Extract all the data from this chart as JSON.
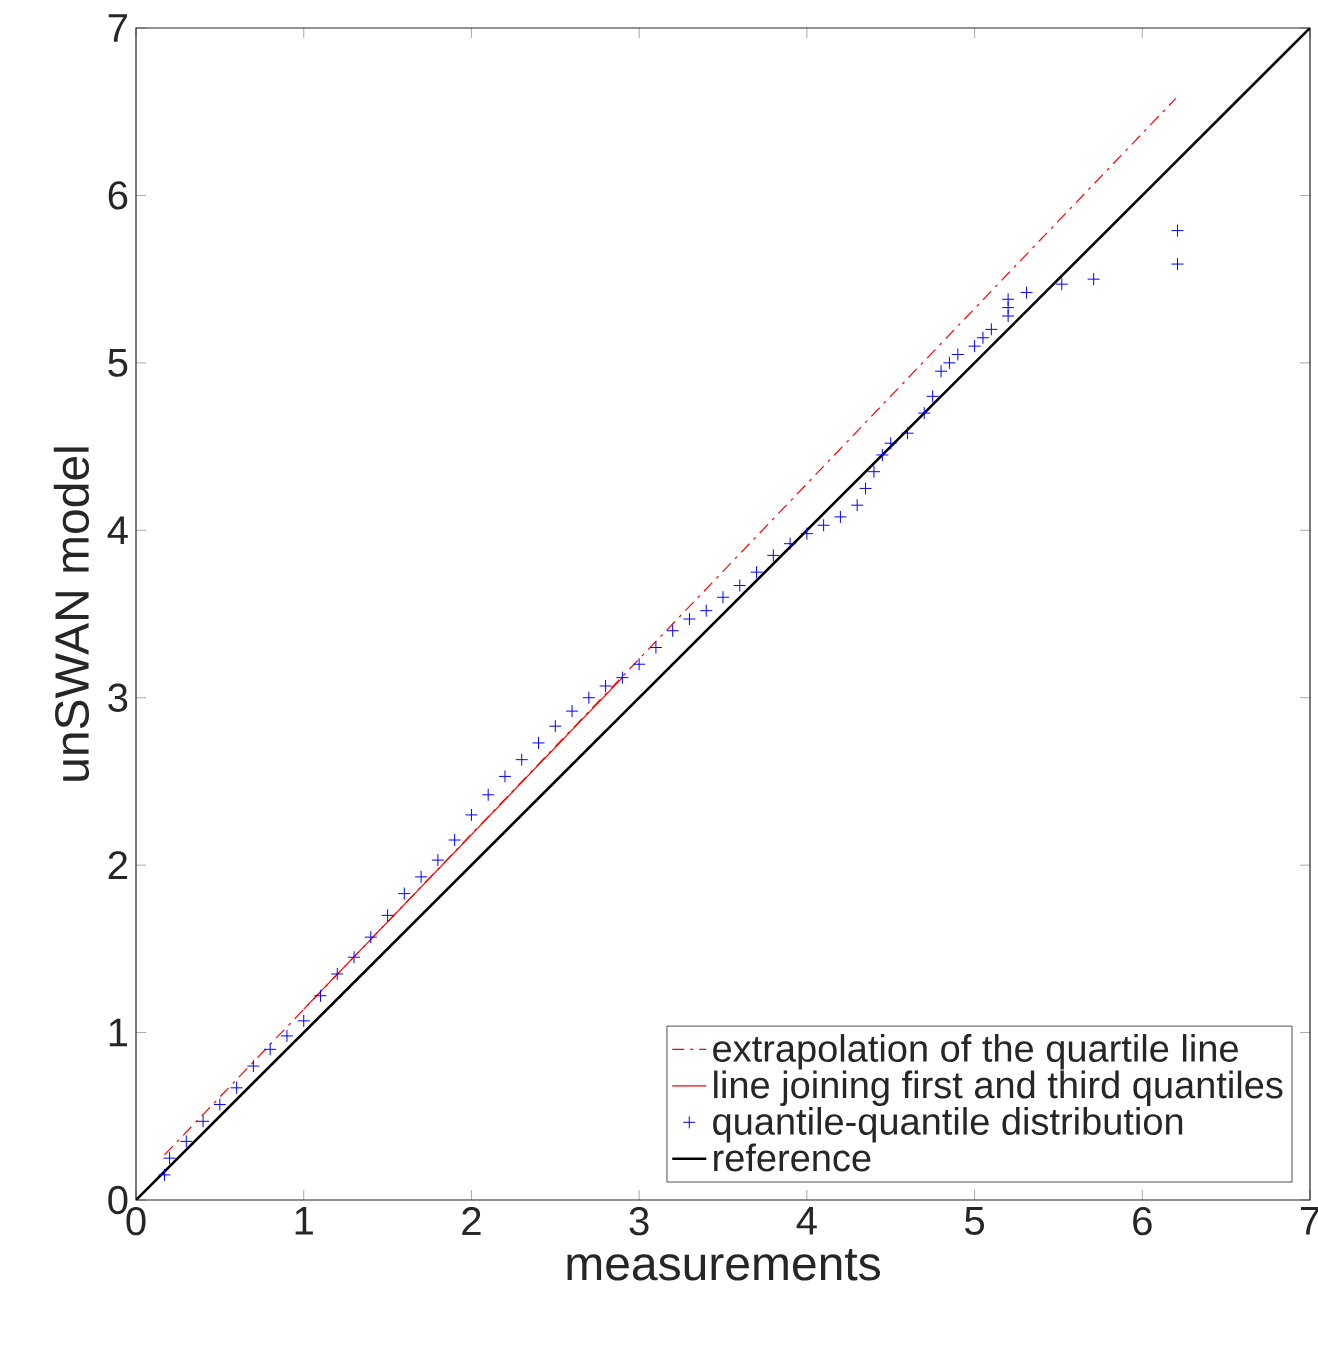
{
  "chart_data": {
    "type": "scatter",
    "xlabel": "measurements",
    "ylabel": "unSWAN model",
    "xlim": [
      0,
      7
    ],
    "ylim": [
      0,
      7
    ],
    "xticks": [
      0,
      1,
      2,
      3,
      4,
      5,
      6,
      7
    ],
    "yticks": [
      0,
      1,
      2,
      3,
      4,
      5,
      6,
      7
    ],
    "legend": "bottom right",
    "series": [
      {
        "name": "extrapolation of the quartile line",
        "type": "line",
        "line_style": "dashdot",
        "color": "#ff0000",
        "x": [
          0.17,
          6.2
        ],
        "values": [
          0.27,
          6.58
        ]
      },
      {
        "name": "line joining first and third quantiles",
        "type": "line",
        "line_style": "solid",
        "color": "#ff0000",
        "x": [
          1.0,
          2.9
        ],
        "values": [
          1.14,
          3.12
        ]
      },
      {
        "name": "quantile-quantile distribution",
        "type": "scatter",
        "marker": "cross",
        "color": "#0000ff",
        "x": [
          0.17,
          0.2,
          0.3,
          0.4,
          0.5,
          0.6,
          0.7,
          0.8,
          0.9,
          1.0,
          1.1,
          1.2,
          1.3,
          1.4,
          1.5,
          1.6,
          1.7,
          1.8,
          1.9,
          2.0,
          2.1,
          2.2,
          2.3,
          2.4,
          2.5,
          2.6,
          2.7,
          2.8,
          2.9,
          3.0,
          3.1,
          3.2,
          3.3,
          3.4,
          3.5,
          3.6,
          3.7,
          3.8,
          3.9,
          4.0,
          4.1,
          4.2,
          4.3,
          4.35,
          4.4,
          4.45,
          4.5,
          4.6,
          4.7,
          4.75,
          4.8,
          4.85,
          4.9,
          5.0,
          5.05,
          5.1,
          5.2,
          5.2,
          5.2,
          5.31,
          5.52,
          5.71,
          6.21,
          6.21
        ],
        "values": [
          0.15,
          0.25,
          0.35,
          0.47,
          0.57,
          0.67,
          0.8,
          0.9,
          0.98,
          1.07,
          1.22,
          1.35,
          1.45,
          1.57,
          1.7,
          1.83,
          1.93,
          2.03,
          2.15,
          2.3,
          2.42,
          2.53,
          2.63,
          2.73,
          2.83,
          2.92,
          3.0,
          3.07,
          3.12,
          3.2,
          3.3,
          3.4,
          3.47,
          3.52,
          3.6,
          3.67,
          3.75,
          3.85,
          3.92,
          3.98,
          4.03,
          4.08,
          4.15,
          4.25,
          4.35,
          4.45,
          4.52,
          4.58,
          4.7,
          4.8,
          4.95,
          5.0,
          5.05,
          5.1,
          5.15,
          5.2,
          5.28,
          5.33,
          5.38,
          5.42,
          5.47,
          5.5,
          5.59,
          5.79
        ]
      },
      {
        "name": "reference",
        "type": "line",
        "line_style": "solid",
        "color": "#000000",
        "x": [
          0,
          7
        ],
        "values": [
          0,
          7
        ]
      }
    ]
  }
}
